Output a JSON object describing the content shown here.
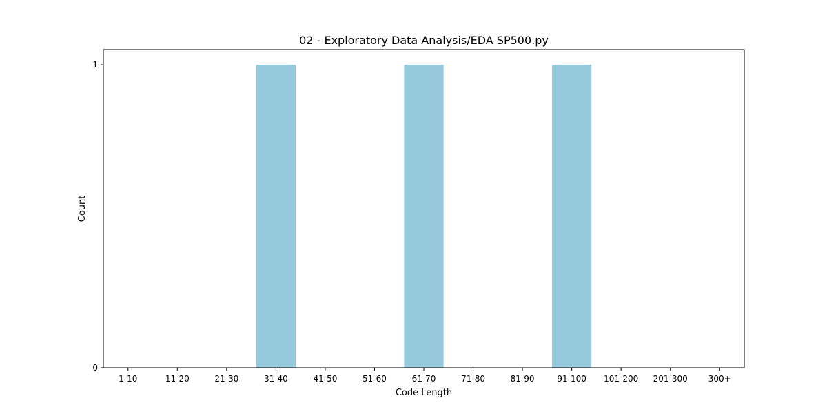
{
  "chart_data": {
    "type": "bar",
    "title": "02 - Exploratory Data Analysis/EDA SP500.py",
    "xlabel": "Code Length",
    "ylabel": "Count",
    "categories": [
      "1-10",
      "11-20",
      "21-30",
      "31-40",
      "41-50",
      "51-60",
      "61-70",
      "71-80",
      "81-90",
      "91-100",
      "101-200",
      "201-300",
      "300+"
    ],
    "values": [
      0,
      0,
      0,
      1,
      0,
      0,
      1,
      0,
      0,
      1,
      0,
      0,
      0
    ],
    "ylim": [
      0,
      1.05
    ],
    "yticks": [
      0,
      1
    ],
    "grid": false,
    "bar_color": "#96c9dc"
  }
}
